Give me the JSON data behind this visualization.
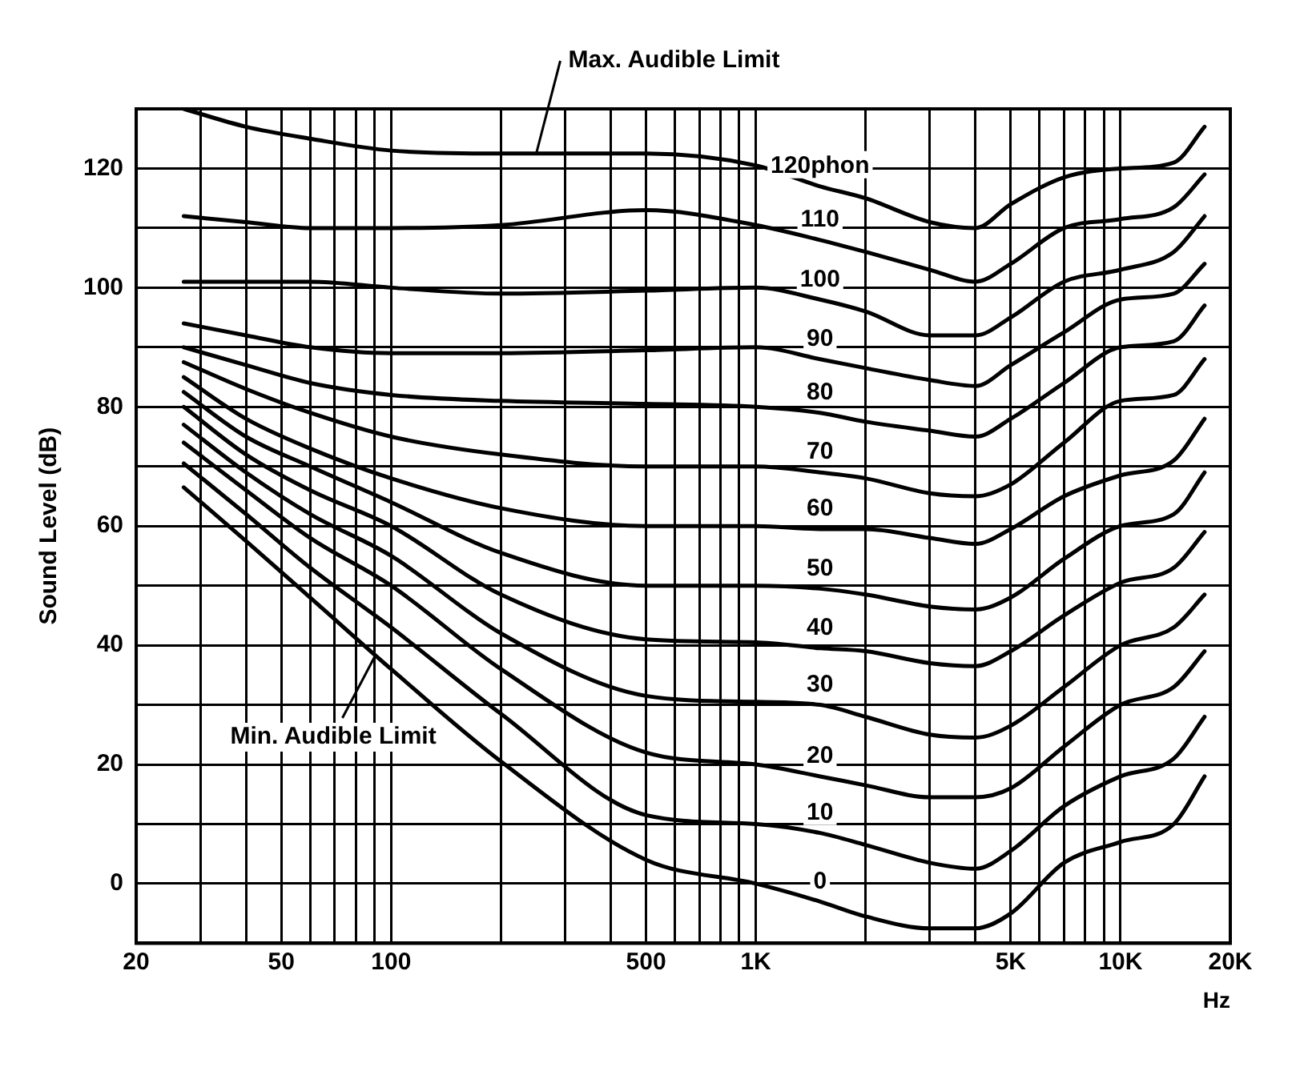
{
  "chart_data": {
    "type": "line",
    "xlabel": "Hz",
    "ylabel": "Sound Level (dB)",
    "log": "x",
    "grid": true,
    "legend": false,
    "marker": "none",
    "line_style": "solid",
    "x": [
      27,
      40,
      60,
      100,
      200,
      500,
      1000,
      1500,
      2000,
      3000,
      4000,
      5000,
      7000,
      10000,
      14000,
      17000
    ],
    "xlim": [
      20,
      20000
    ],
    "xticks": [
      20,
      {
        "value": 30,
        "label": null
      },
      {
        "value": 40,
        "label": null
      },
      50,
      {
        "value": 60,
        "label": null
      },
      {
        "value": 70,
        "label": null
      },
      {
        "value": 80,
        "label": null
      },
      {
        "value": 90,
        "label": null
      },
      100,
      {
        "value": 200,
        "label": null
      },
      {
        "value": 300,
        "label": null
      },
      {
        "value": 400,
        "label": null
      },
      500,
      {
        "value": 600,
        "label": null
      },
      {
        "value": 700,
        "label": null
      },
      {
        "value": 800,
        "label": null
      },
      {
        "value": 900,
        "label": null
      },
      {
        "value": 1000,
        "label": "1K"
      },
      {
        "value": 2000,
        "label": null
      },
      {
        "value": 3000,
        "label": null
      },
      {
        "value": 4000,
        "label": null
      },
      {
        "value": 5000,
        "label": "5K"
      },
      {
        "value": 6000,
        "label": null
      },
      {
        "value": 7000,
        "label": null
      },
      {
        "value": 8000,
        "label": null
      },
      {
        "value": 9000,
        "label": null
      },
      {
        "value": 10000,
        "label": "10K"
      },
      {
        "value": 20000,
        "label": "20K"
      }
    ],
    "ylim": [
      -10,
      130
    ],
    "yticks": [
      0,
      {
        "value": 10,
        "label": null
      },
      20,
      {
        "value": 30,
        "label": null
      },
      40,
      {
        "value": 50,
        "label": null
      },
      60,
      {
        "value": 70,
        "label": null
      },
      80,
      {
        "value": 90,
        "label": null
      },
      100,
      {
        "value": 110,
        "label": null
      },
      120
    ],
    "series": [
      {
        "name": "120phon",
        "color": "#000000",
        "values": [
          130,
          127,
          125,
          123,
          122.5,
          122.5,
          120.5,
          117,
          115,
          111,
          110,
          114,
          118.5,
          120,
          121,
          127
        ]
      },
      {
        "name": "110",
        "color": "#000000",
        "values": [
          112,
          111,
          110,
          110,
          110.5,
          113,
          110.5,
          108,
          106,
          103,
          101,
          104,
          110,
          111.5,
          113.5,
          119
        ]
      },
      {
        "name": "100",
        "color": "#000000",
        "values": [
          101,
          101,
          101,
          100,
          99,
          99.5,
          100,
          98,
          96,
          92,
          92,
          95,
          101,
          103,
          106,
          112
        ]
      },
      {
        "name": "90",
        "color": "#000000",
        "values": [
          94,
          92,
          90,
          89,
          89,
          89.5,
          90,
          88,
          86.5,
          84.5,
          83.5,
          87,
          92.5,
          98,
          99,
          104
        ]
      },
      {
        "name": "80",
        "color": "#000000",
        "values": [
          90,
          87,
          84,
          82,
          81,
          80.5,
          80,
          79,
          77.5,
          76,
          75,
          78,
          84,
          90,
          91,
          97
        ]
      },
      {
        "name": "70",
        "color": "#000000",
        "values": [
          87.5,
          83,
          79,
          75,
          72,
          70,
          70,
          69,
          68,
          65.5,
          65,
          67,
          74,
          81,
          82,
          88
        ]
      },
      {
        "name": "60",
        "color": "#000000",
        "values": [
          85,
          78,
          73,
          68,
          63,
          60,
          60,
          59.5,
          59.5,
          58,
          57,
          59.5,
          65,
          68.5,
          71,
          78
        ]
      },
      {
        "name": "50",
        "color": "#000000",
        "values": [
          82.5,
          75,
          70,
          64,
          55.5,
          50,
          50,
          49.5,
          48.5,
          46.5,
          46,
          48,
          54.5,
          60,
          62,
          69
        ]
      },
      {
        "name": "40",
        "color": "#000000",
        "values": [
          80,
          72,
          66,
          60,
          48.5,
          41,
          40.5,
          39.5,
          39,
          37,
          36.5,
          39,
          45,
          50.5,
          53,
          59
        ]
      },
      {
        "name": "30",
        "color": "#000000",
        "values": [
          77,
          69,
          62,
          55,
          42,
          31.5,
          30.5,
          30,
          28,
          25,
          24.5,
          26.5,
          33,
          40,
          43,
          48.5
        ]
      },
      {
        "name": "20",
        "color": "#000000",
        "values": [
          74,
          66,
          58,
          50,
          36,
          22,
          20,
          18,
          16.5,
          14.5,
          14.5,
          16,
          23,
          30,
          33,
          39
        ]
      },
      {
        "name": "10",
        "color": "#000000",
        "values": [
          70.5,
          62,
          53,
          43,
          28.5,
          11.5,
          10,
          8.5,
          6.5,
          3.5,
          2.5,
          5.5,
          13,
          18,
          21,
          28
        ]
      },
      {
        "name": "0",
        "color": "#000000",
        "values": [
          66.5,
          57.5,
          48,
          36,
          20.5,
          4,
          0,
          -3,
          -5.5,
          -7.5,
          -7.5,
          -5,
          3.5,
          7,
          10,
          18
        ]
      }
    ],
    "annotations": [
      {
        "text": "Max. Audible Limit",
        "x": 250,
        "y": 122.5
      },
      {
        "text": "Min. Audible Limit",
        "x": 90,
        "y": 38
      }
    ]
  }
}
